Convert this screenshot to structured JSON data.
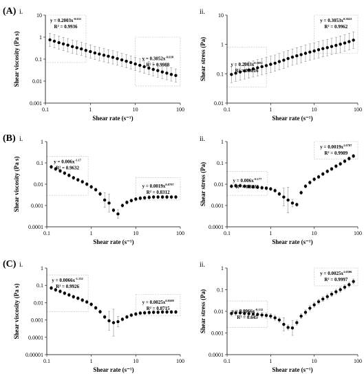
{
  "chart_data": [
    {
      "id": "A-i",
      "row_label": "(A)",
      "sub_label": "i.",
      "type": "scatter",
      "xlabel": "Shear rate (s⁻¹)",
      "ylabel": "Shear viscosity (Pa s)",
      "x_scale": "log",
      "y_scale": "log",
      "xlim": [
        0.1,
        100
      ],
      "ylim": [
        0.001,
        10
      ],
      "x_ticks": [
        0.1,
        1,
        10,
        100
      ],
      "x_tick_labels": [
        "0.1",
        "1",
        "10",
        "100"
      ],
      "y_ticks": [
        0.001,
        0.01,
        0.1,
        1,
        10
      ],
      "y_tick_labels": [
        "0.001",
        "0.01",
        "0.1",
        "1",
        "10"
      ],
      "x": [
        0.126,
        0.158,
        0.2,
        0.251,
        0.316,
        0.398,
        0.501,
        0.631,
        0.794,
        1,
        1.26,
        1.58,
        2,
        2.51,
        3.16,
        3.98,
        5.01,
        6.31,
        7.94,
        10,
        12.6,
        15.8,
        20,
        25.1,
        31.6,
        39.8,
        50.1,
        63.1,
        79.4
      ],
      "y": [
        0.75,
        0.65,
        0.56,
        0.49,
        0.43,
        0.37,
        0.33,
        0.29,
        0.25,
        0.22,
        0.19,
        0.17,
        0.15,
        0.135,
        0.12,
        0.105,
        0.092,
        0.08,
        0.07,
        0.06,
        0.052,
        0.045,
        0.039,
        0.034,
        0.03,
        0.026,
        0.023,
        0.02,
        0.018
      ],
      "error_factor": 2.0,
      "fits": [
        {
          "equation": "y = 0.2003x",
          "exponent": "-0.631",
          "r2": "R² = 0.9936",
          "anchor": "top-left",
          "box": {
            "x": [
              0.1,
              0.8
            ],
            "y": [
              0.07,
              10
            ]
          }
        },
        {
          "equation": "y = 0.3052x",
          "exponent": "-0.638",
          "r2": "R² = 0.9988",
          "anchor": "right",
          "box": {
            "x": [
              10,
              100
            ],
            "y": [
              0.006,
              1
            ]
          }
        }
      ]
    },
    {
      "id": "A-ii",
      "row_label": "",
      "sub_label": "ii.",
      "type": "scatter",
      "xlabel": "Shear rate (s⁻¹)",
      "ylabel": "Shear stress (Pa)",
      "x_scale": "log",
      "y_scale": "log",
      "xlim": [
        0.1,
        100
      ],
      "ylim": [
        0.01,
        10
      ],
      "x_ticks": [
        0.1,
        1,
        10,
        100
      ],
      "x_tick_labels": [
        "0.1",
        "1",
        "10",
        "100"
      ],
      "y_ticks": [
        0.01,
        0.1,
        1,
        10
      ],
      "y_tick_labels": [
        "0.01",
        "0.1",
        "1",
        "10"
      ],
      "x": [
        0.126,
        0.158,
        0.2,
        0.251,
        0.316,
        0.398,
        0.501,
        0.631,
        0.794,
        1,
        1.26,
        1.58,
        2,
        2.51,
        3.16,
        3.98,
        5.01,
        6.31,
        7.94,
        10,
        12.6,
        15.8,
        20,
        25.1,
        31.6,
        39.8,
        50.1,
        63.1,
        79.4
      ],
      "y": [
        0.095,
        0.105,
        0.115,
        0.125,
        0.135,
        0.148,
        0.16,
        0.175,
        0.19,
        0.21,
        0.23,
        0.26,
        0.29,
        0.33,
        0.37,
        0.41,
        0.45,
        0.5,
        0.55,
        0.6,
        0.66,
        0.72,
        0.78,
        0.85,
        0.93,
        1.02,
        1.12,
        1.25,
        1.4
      ],
      "error_factor": 1.9,
      "fits": [
        {
          "equation": "y = 0.2003x",
          "exponent": "0.3692",
          "r2": "R² = 0.9816",
          "anchor": "left",
          "box": {
            "x": [
              0.1,
              0.8
            ],
            "y": [
              0.035,
              0.8
            ]
          }
        },
        {
          "equation": "y = 0.3053x",
          "exponent": "0.3623",
          "r2": "R² = 0.9962",
          "anchor": "top-right",
          "box": {
            "x": [
              10,
              100
            ],
            "y": [
              0.5,
              10
            ]
          }
        }
      ]
    },
    {
      "id": "B-i",
      "row_label": "(B)",
      "sub_label": "i.",
      "type": "scatter",
      "xlabel": "Shear rate (s⁻¹)",
      "ylabel": "Shear viscosity (Pa s)",
      "x_scale": "log",
      "y_scale": "log",
      "xlim": [
        0.1,
        100
      ],
      "ylim": [
        0.0001,
        1
      ],
      "x_ticks": [
        0.1,
        1,
        10,
        100
      ],
      "x_tick_labels": [
        "0.1",
        "1",
        "10",
        "100"
      ],
      "y_ticks": [
        0.0001,
        0.001,
        0.01,
        0.1,
        1
      ],
      "y_tick_labels": [
        "0.0001",
        "0.001",
        "0.01",
        "0.1",
        "1"
      ],
      "x": [
        0.126,
        0.158,
        0.2,
        0.251,
        0.316,
        0.398,
        0.501,
        0.631,
        0.794,
        1,
        1.26,
        1.58,
        2,
        2.51,
        3.16,
        3.98,
        5.01,
        6.31,
        7.94,
        10,
        12.6,
        15.8,
        20,
        25.1,
        31.6,
        39.8,
        50.1,
        63.1,
        79.4
      ],
      "y": [
        0.065,
        0.052,
        0.042,
        0.033,
        0.026,
        0.02,
        0.016,
        0.013,
        0.01,
        0.0075,
        0.0055,
        0.0035,
        0.0018,
        0.0013,
        0.0006,
        0.0004,
        0.001,
        0.0014,
        0.0017,
        0.002,
        0.0022,
        0.0023,
        0.0024,
        0.0025,
        0.0025,
        0.0025,
        0.0025,
        0.0025,
        0.0025
      ],
      "error_factor": 1.2,
      "big_errors": {
        "12": 2.2,
        "13": 2.6,
        "15": 1.6
      },
      "fits": [
        {
          "equation": "y = 0.006x",
          "exponent": "-1.17",
          "r2": "R² = 0.9632",
          "anchor": "top-left",
          "box": {
            "x": [
              0.1,
              0.85
            ],
            "y": [
              0.003,
              0.2
            ]
          }
        },
        {
          "equation": "y = 0.0019x",
          "exponent": "0.0797",
          "r2": "R² = 0.8312",
          "anchor": "right",
          "box": {
            "x": [
              10,
              100
            ],
            "y": [
              0.0018,
              0.02
            ]
          }
        }
      ]
    },
    {
      "id": "B-ii",
      "row_label": "",
      "sub_label": "ii.",
      "type": "scatter",
      "xlabel": "Shear rate (s⁻¹)",
      "ylabel": "Shear stress (Pa)",
      "x_scale": "log",
      "y_scale": "log",
      "xlim": [
        0.1,
        100
      ],
      "ylim": [
        0.0001,
        1
      ],
      "x_ticks": [
        0.1,
        1,
        10,
        100
      ],
      "x_tick_labels": [
        "0.1",
        "1",
        "10",
        "100"
      ],
      "y_ticks": [
        0.0001,
        0.001,
        0.01,
        0.1,
        1
      ],
      "y_tick_labels": [
        "0.0001",
        "0.001",
        "0.01",
        "0.1",
        "1"
      ],
      "x": [
        0.126,
        0.158,
        0.2,
        0.251,
        0.316,
        0.398,
        0.501,
        0.631,
        0.794,
        1,
        1.26,
        1.58,
        2,
        2.51,
        3.16,
        3.98,
        5.01,
        6.31,
        7.94,
        10,
        12.6,
        15.8,
        20,
        25.1,
        31.6,
        39.8,
        50.1,
        63.1,
        79.4
      ],
      "y": [
        0.008,
        0.0085,
        0.0085,
        0.008,
        0.0078,
        0.0075,
        0.0072,
        0.0068,
        0.0065,
        0.006,
        0.005,
        0.0035,
        0.0025,
        0.0018,
        0.0013,
        0.0011,
        0.004,
        0.008,
        0.012,
        0.017,
        0.022,
        0.03,
        0.04,
        0.052,
        0.07,
        0.09,
        0.12,
        0.16,
        0.21
      ],
      "error_factor": 1.2,
      "big_errors": {
        "12": 2.6,
        "13": 4.0,
        "14": 1.5
      },
      "fits": [
        {
          "equation": "y = 0.006x",
          "exponent": "-0.177",
          "r2": "R² = 0.8231",
          "anchor": "left",
          "box": {
            "x": [
              0.1,
              0.85
            ],
            "y": [
              0.003,
              0.04
            ]
          }
        },
        {
          "equation": "y = 0.0019x",
          "exponent": "1.0787",
          "r2": "R² = 0.9989",
          "anchor": "top-right",
          "box": {
            "x": [
              10,
              100
            ],
            "y": [
              0.15,
              1
            ]
          }
        }
      ]
    },
    {
      "id": "C-i",
      "row_label": "(C)",
      "sub_label": "i.",
      "type": "scatter",
      "xlabel": "Shear rate (s⁻¹)",
      "ylabel": "Shear viscosity (Pa s)",
      "x_scale": "log",
      "y_scale": "log",
      "xlim": [
        0.1,
        100
      ],
      "ylim": [
        1e-05,
        1
      ],
      "x_ticks": [
        0.1,
        1,
        10,
        100
      ],
      "x_tick_labels": [
        "0.1",
        "1",
        "10",
        "100"
      ],
      "y_ticks": [
        1e-05,
        0.0001,
        0.001,
        0.01,
        0.1,
        1
      ],
      "y_tick_labels": [
        "0.00001",
        "0.0001",
        "0.001",
        "0.01",
        "0.1",
        "1"
      ],
      "x": [
        0.126,
        0.158,
        0.2,
        0.251,
        0.316,
        0.398,
        0.501,
        0.631,
        0.794,
        1,
        1.26,
        1.58,
        2,
        2.51,
        3.16,
        3.98,
        5.01,
        6.31,
        7.94,
        10,
        12.6,
        15.8,
        20,
        25.1,
        31.6,
        39.8,
        50.1,
        63.1,
        79.4
      ],
      "y": [
        0.07,
        0.055,
        0.045,
        0.035,
        0.028,
        0.022,
        0.018,
        0.014,
        0.011,
        0.008,
        0.005,
        0.003,
        0.0015,
        0.0009,
        0.0007,
        0.0008,
        0.0011,
        0.0015,
        0.0019,
        0.0022,
        0.0025,
        0.0026,
        0.0027,
        0.0028,
        0.0028,
        0.0029,
        0.0029,
        0.0029,
        0.0029
      ],
      "error_factor": 1.25,
      "big_errors": {
        "13": 3.5,
        "14": 6.0,
        "15": 2.0
      },
      "fits": [
        {
          "equation": "y = 0.0066x",
          "exponent": "-1.132",
          "r2": "R² = 0.9926",
          "anchor": "top-left",
          "box": {
            "x": [
              0.1,
              0.85
            ],
            "y": [
              0.003,
              0.4
            ]
          }
        },
        {
          "equation": "y = 0.0025x",
          "exponent": "0.0508",
          "r2": "R² = 0.8715",
          "anchor": "right",
          "box": {
            "x": [
              10,
              100
            ],
            "y": [
              0.0018,
              0.03
            ]
          }
        }
      ]
    },
    {
      "id": "C-ii",
      "row_label": "",
      "sub_label": "ii.",
      "type": "scatter",
      "xlabel": "Shear rate (s⁻¹)",
      "ylabel": "Shear stress (Pa)",
      "x_scale": "log",
      "y_scale": "log",
      "xlim": [
        0.1,
        100
      ],
      "ylim": [
        0.0001,
        1
      ],
      "x_ticks": [
        0.1,
        1,
        10,
        100
      ],
      "x_tick_labels": [
        "0.1",
        "1",
        "10",
        "100"
      ],
      "y_ticks": [
        0.0001,
        0.001,
        0.01,
        0.1,
        1
      ],
      "y_tick_labels": [
        "0.0001",
        "0.001",
        "0.01",
        "0.1",
        "1"
      ],
      "x": [
        0.126,
        0.158,
        0.2,
        0.251,
        0.316,
        0.398,
        0.501,
        0.631,
        0.794,
        1,
        1.26,
        1.58,
        2,
        2.51,
        3.16,
        3.98,
        5.01,
        6.31,
        7.94,
        10,
        12.6,
        15.8,
        20,
        25.1,
        31.6,
        39.8,
        50.1,
        63.1,
        79.4
      ],
      "y": [
        0.008,
        0.0085,
        0.0085,
        0.008,
        0.0078,
        0.0075,
        0.0072,
        0.0068,
        0.0065,
        0.006,
        0.005,
        0.004,
        0.0025,
        0.0018,
        0.0017,
        0.003,
        0.006,
        0.009,
        0.014,
        0.02,
        0.028,
        0.037,
        0.048,
        0.062,
        0.08,
        0.1,
        0.13,
        0.17,
        0.24
      ],
      "error_factor": 1.3,
      "big_errors": {
        "12": 2.0,
        "14": 2.2
      },
      "fits": [
        {
          "equation": "y = 0.0066x",
          "exponent": "-0.132",
          "r2": "R² = 0.645",
          "anchor": "left",
          "box": {
            "x": [
              0.1,
              0.85
            ],
            "y": [
              0.0018,
              0.03
            ]
          }
        },
        {
          "equation": "y = 0.0025x",
          "exponent": "1.0506",
          "r2": "R² = 0.9997",
          "anchor": "top-right",
          "box": {
            "x": [
              10,
              100
            ],
            "y": [
              0.15,
              1
            ]
          }
        }
      ]
    }
  ]
}
